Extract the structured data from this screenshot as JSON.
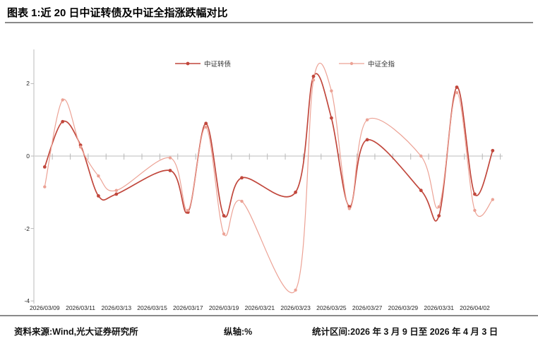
{
  "header": {
    "title": "图表 1:近 20 日中证转债及中证全指涨跌幅对比"
  },
  "footer": {
    "source": "资料来源:Wind,光大证券研究所",
    "axis_note": "纵轴:%",
    "period": "统计区间:2026 年 3 月 9 日至 2026 年 4 月 3 日"
  },
  "colors": {
    "series1": "#c1473c",
    "series2": "#eca295",
    "axis_line": "#c6c6c6",
    "zero_line": "#d8d8d8",
    "tick_mark": "#b8b8b8",
    "tick_text": "#262626",
    "divider": "#8a8a8a"
  },
  "chart_data": {
    "type": "line",
    "title": "近 20 日中证转债及中证全指涨跌幅对比",
    "xlabel": "",
    "ylabel": "%",
    "ylim": [
      -4.1,
      2.9
    ],
    "grid": "zero-line-only",
    "legend_position": "top-center",
    "dates": [
      "2026/03/09",
      "2026/03/10",
      "2026/03/11",
      "2026/03/12",
      "2026/03/13",
      "2026/03/16",
      "2026/03/17",
      "2026/03/18",
      "2026/03/19",
      "2026/03/20",
      "2026/03/23",
      "2026/03/24",
      "2026/03/25",
      "2026/03/26",
      "2026/03/27",
      "2026/03/30",
      "2026/03/31",
      "2026/04/01",
      "2026/04/02",
      "2026/04/03"
    ],
    "series": [
      {
        "name": "中证转债",
        "color": "#c1473c",
        "values": [
          -0.3,
          0.95,
          0.3,
          -1.1,
          -1.05,
          -0.4,
          -1.55,
          0.9,
          -1.65,
          -0.6,
          -1.0,
          2.2,
          1.05,
          -1.4,
          0.45,
          -0.95,
          -1.65,
          1.9,
          -1.05,
          0.15
        ]
      },
      {
        "name": "中证全指",
        "color": "#eca295",
        "values": [
          -0.85,
          1.55,
          0.25,
          -0.55,
          -0.95,
          -0.05,
          -1.5,
          0.8,
          -2.15,
          -1.25,
          -3.7,
          2.1,
          1.8,
          -1.45,
          1.0,
          0.0,
          -1.4,
          1.75,
          -1.5,
          -1.2
        ]
      }
    ],
    "y_ticks": [
      2,
      0,
      -2,
      -4
    ],
    "x_tick_labels": [
      "2026/03/09",
      "2026/03/11",
      "2026/03/13",
      "2026/03/15",
      "2026/03/17",
      "2026/03/19",
      "2026/03/21",
      "2026/03/23",
      "2026/03/25",
      "2026/03/27",
      "2026/03/29",
      "2026/03/31",
      "2026/04/02"
    ]
  }
}
